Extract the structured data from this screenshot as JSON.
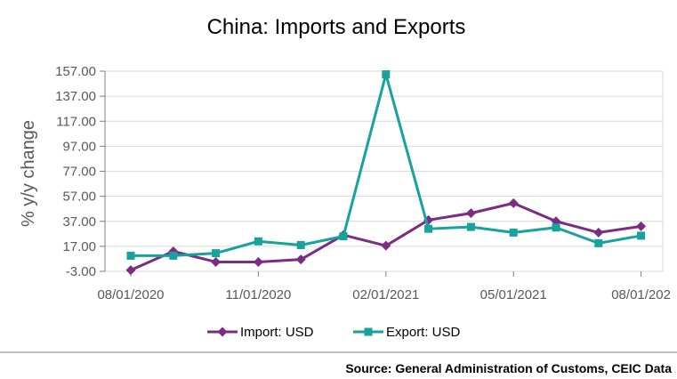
{
  "chart_data": {
    "type": "line",
    "title": "China: Imports and Exports",
    "ylabel": "% y/y change",
    "xlabel": "",
    "ylim": [
      -3,
      157
    ],
    "yticks": [
      "157.00",
      "137.00",
      "117.00",
      "97.00",
      "77.00",
      "57.00",
      "37.00",
      "17.00",
      "-3.00"
    ],
    "ytick_values": [
      157,
      137,
      117,
      97,
      77,
      57,
      37,
      17,
      -3
    ],
    "xticks": [
      "08/01/2020",
      "11/01/2020",
      "02/01/2021",
      "05/01/2021",
      "08/01/202"
    ],
    "xtick_values": [
      0,
      3,
      6,
      9,
      12
    ],
    "x": [
      "08/2020",
      "09/2020",
      "10/2020",
      "11/2020",
      "12/2020",
      "01/2021",
      "02/2021",
      "03/2021",
      "04/2021",
      "05/2021",
      "06/2021",
      "07/2021",
      "08/2021"
    ],
    "grid": "horizontal",
    "legend_position": "bottom",
    "series": [
      {
        "name": "Import: USD",
        "color": "#7B2C83",
        "marker": "diamond",
        "values": [
          -2,
          13,
          4.5,
          4.5,
          6.5,
          26,
          17.5,
          38,
          43.5,
          51.5,
          37,
          28,
          33
        ]
      },
      {
        "name": "Export: USD",
        "color": "#17A39B",
        "marker": "square",
        "values": [
          9.5,
          9.5,
          11.5,
          21,
          18,
          25,
          154.5,
          31,
          32.5,
          28,
          32,
          19.5,
          25.5
        ]
      }
    ]
  },
  "source_text": "Source: General Administration of Customs, CEIC Data"
}
